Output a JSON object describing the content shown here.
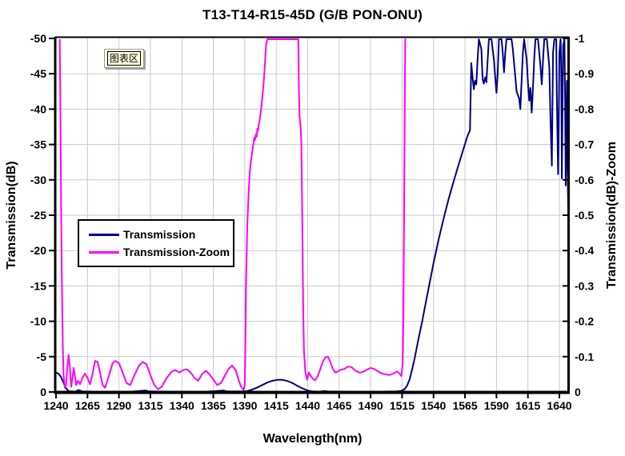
{
  "chart_data": {
    "type": "line",
    "title": "T13-T14-R15-45D (G/B PON-ONU)",
    "xlabel": "Wavelength(nm)",
    "ylabel_left": "Transmission(dB)",
    "ylabel_right": "Transmission(dB)-Zoom",
    "grid": true,
    "xlim": [
      1240,
      1647
    ],
    "ylim_left": [
      -50,
      0
    ],
    "ylim_right": [
      -1,
      0
    ],
    "ticks": {
      "x": [
        "1240",
        "1265",
        "1290",
        "1315",
        "1340",
        "1365",
        "1390",
        "1415",
        "1440",
        "1465",
        "1490",
        "1515",
        "1540",
        "1565",
        "1590",
        "1615",
        "1640"
      ],
      "y_left": [
        "-50",
        "-45",
        "-40",
        "-35",
        "-30",
        "-25",
        "-20",
        "-15",
        "-10",
        "-5",
        "0"
      ],
      "y_right": [
        "-1",
        "-0.9",
        "-0.8",
        "-0.7",
        "-0.6",
        "-0.5",
        "-0.4",
        "-0.3",
        "-0.2",
        "-0.1",
        "0"
      ]
    },
    "legend": {
      "position": "inside-left",
      "entries": [
        {
          "label": "Transmission",
          "color": "#000080"
        },
        {
          "label": "Transmission-Zoom",
          "color": "#FF00FF"
        }
      ]
    },
    "annotations": [
      {
        "label": "图表区",
        "meaning": "chart-area tooltip"
      }
    ],
    "colors": {
      "series_transmission": "#000080",
      "series_transmission_zoom": "#FF00FF",
      "grid": "#c9c9c9",
      "axis": "#000000",
      "background": "#ffffff",
      "tooltip_bg": "#ffffe1"
    },
    "series": [
      {
        "name": "Transmission",
        "axis": "left",
        "color": "#000080",
        "points": [
          [
            1240,
            -2.75
          ],
          [
            1242,
            -2.6
          ],
          [
            1244,
            -2.1
          ],
          [
            1246,
            -1.3
          ],
          [
            1248,
            -0.5
          ],
          [
            1250,
            -0.12
          ],
          [
            1255,
            -0.06
          ],
          [
            1258,
            -0.28
          ],
          [
            1261,
            -0.08
          ],
          [
            1270,
            -0.06
          ],
          [
            1285,
            -0.06
          ],
          [
            1300,
            -0.06
          ],
          [
            1311,
            -0.22
          ],
          [
            1314,
            -0.08
          ],
          [
            1330,
            -0.06
          ],
          [
            1345,
            -0.06
          ],
          [
            1360,
            -0.06
          ],
          [
            1373,
            -0.22
          ],
          [
            1376,
            -0.08
          ],
          [
            1388,
            -0.08
          ],
          [
            1392,
            -0.15
          ],
          [
            1396,
            -0.35
          ],
          [
            1400,
            -0.65
          ],
          [
            1404,
            -1.0
          ],
          [
            1408,
            -1.35
          ],
          [
            1412,
            -1.6
          ],
          [
            1416,
            -1.72
          ],
          [
            1420,
            -1.72
          ],
          [
            1424,
            -1.55
          ],
          [
            1428,
            -1.25
          ],
          [
            1432,
            -0.85
          ],
          [
            1436,
            -0.5
          ],
          [
            1440,
            -0.22
          ],
          [
            1444,
            -0.08
          ],
          [
            1450,
            -0.06
          ],
          [
            1453,
            -0.15
          ],
          [
            1456,
            -0.08
          ],
          [
            1470,
            -0.06
          ],
          [
            1485,
            -0.06
          ],
          [
            1500,
            -0.06
          ],
          [
            1510,
            -0.08
          ],
          [
            1514,
            -0.15
          ],
          [
            1517,
            -0.4
          ],
          [
            1519,
            -0.9
          ],
          [
            1521,
            -1.8
          ],
          [
            1523,
            -3.2
          ],
          [
            1525,
            -4.8
          ],
          [
            1528,
            -7.5
          ],
          [
            1531,
            -10
          ],
          [
            1534,
            -12.8
          ],
          [
            1537,
            -15.5
          ],
          [
            1540,
            -18.2
          ],
          [
            1544,
            -21.5
          ],
          [
            1548,
            -24.5
          ],
          [
            1552,
            -27.3
          ],
          [
            1556,
            -29.8
          ],
          [
            1560,
            -32.2
          ],
          [
            1564,
            -34.5
          ],
          [
            1567,
            -36.2
          ],
          [
            1569,
            -37
          ],
          [
            1570,
            -46.5
          ],
          [
            1571,
            -44.5
          ],
          [
            1572,
            -42.8
          ],
          [
            1573,
            -44
          ],
          [
            1574,
            -43.5
          ],
          [
            1575,
            -47
          ],
          [
            1576,
            -50.5
          ],
          [
            1578,
            -48.5
          ],
          [
            1579,
            -44.2
          ],
          [
            1580,
            -43.6
          ],
          [
            1581,
            -44.5
          ],
          [
            1582,
            -43.8
          ],
          [
            1583,
            -47
          ],
          [
            1584,
            -50.5
          ],
          [
            1586,
            -51
          ],
          [
            1588,
            -47
          ],
          [
            1589,
            -44.5
          ],
          [
            1590,
            -42.3
          ],
          [
            1591,
            -45
          ],
          [
            1592,
            -50.5
          ],
          [
            1594,
            -51
          ],
          [
            1595,
            -48
          ],
          [
            1596,
            -45.2
          ],
          [
            1597,
            -48
          ],
          [
            1598,
            -50.5
          ],
          [
            1600,
            -51
          ],
          [
            1602,
            -50.5
          ],
          [
            1603,
            -48.5
          ],
          [
            1605,
            -44.5
          ],
          [
            1606,
            -42.5
          ],
          [
            1608,
            -41.5
          ],
          [
            1609,
            -40
          ],
          [
            1610,
            -44
          ],
          [
            1611,
            -48
          ],
          [
            1612,
            -51
          ],
          [
            1614,
            -47
          ],
          [
            1615,
            -43.8
          ],
          [
            1616,
            -41.2
          ],
          [
            1617,
            -43
          ],
          [
            1618,
            -39.5
          ],
          [
            1619,
            -43
          ],
          [
            1620,
            -47
          ],
          [
            1621,
            -51
          ],
          [
            1623,
            -51
          ],
          [
            1625,
            -46
          ],
          [
            1626,
            -43.5
          ],
          [
            1627,
            -47
          ],
          [
            1628,
            -51
          ],
          [
            1630,
            -51
          ],
          [
            1632,
            -46
          ],
          [
            1633,
            -38
          ],
          [
            1634,
            -32
          ],
          [
            1634.5,
            -40
          ],
          [
            1635,
            -48
          ],
          [
            1636,
            -51
          ],
          [
            1637.5,
            -51
          ],
          [
            1638,
            -42
          ],
          [
            1639,
            -30.8
          ],
          [
            1639.5,
            -38
          ],
          [
            1640,
            -48
          ],
          [
            1641,
            -51
          ],
          [
            1641.5,
            -45
          ],
          [
            1642,
            -30.2
          ],
          [
            1642.5,
            -40
          ],
          [
            1643,
            -49
          ],
          [
            1644,
            -51
          ],
          [
            1644.5,
            -42
          ],
          [
            1645,
            -29.2
          ],
          [
            1645.5,
            -36
          ],
          [
            1646,
            -44
          ],
          [
            1646.5,
            -32
          ],
          [
            1647,
            -26
          ]
        ]
      },
      {
        "name": "Transmission-Zoom",
        "axis": "right",
        "color": "#FF00FF",
        "points": [
          [
            1243,
            -1.05
          ],
          [
            1243.5,
            -0.8
          ],
          [
            1244,
            -0.55
          ],
          [
            1244.5,
            -0.35
          ],
          [
            1245,
            -0.22
          ],
          [
            1245.5,
            -0.12
          ],
          [
            1246,
            -0.05
          ],
          [
            1247,
            -0.012
          ],
          [
            1248,
            -0.02
          ],
          [
            1249,
            -0.07
          ],
          [
            1250,
            -0.105
          ],
          [
            1251,
            -0.07
          ],
          [
            1252,
            -0.015
          ],
          [
            1253,
            -0.035
          ],
          [
            1254,
            -0.068
          ],
          [
            1255,
            -0.045
          ],
          [
            1256,
            -0.02
          ],
          [
            1257.5,
            -0.032
          ],
          [
            1259,
            -0.022
          ],
          [
            1261,
            -0.04
          ],
          [
            1263,
            -0.052
          ],
          [
            1265,
            -0.04
          ],
          [
            1267,
            -0.022
          ],
          [
            1269,
            -0.05
          ],
          [
            1271,
            -0.088
          ],
          [
            1273,
            -0.085
          ],
          [
            1275,
            -0.055
          ],
          [
            1277,
            -0.02
          ],
          [
            1279,
            -0.012
          ],
          [
            1282,
            -0.045
          ],
          [
            1285,
            -0.082
          ],
          [
            1287,
            -0.088
          ],
          [
            1290,
            -0.082
          ],
          [
            1293,
            -0.055
          ],
          [
            1296,
            -0.025
          ],
          [
            1299,
            -0.02
          ],
          [
            1302,
            -0.045
          ],
          [
            1306,
            -0.075
          ],
          [
            1309,
            -0.085
          ],
          [
            1312,
            -0.078
          ],
          [
            1315,
            -0.048
          ],
          [
            1318,
            -0.02
          ],
          [
            1321,
            -0.008
          ],
          [
            1324,
            -0.015
          ],
          [
            1328,
            -0.04
          ],
          [
            1332,
            -0.058
          ],
          [
            1335,
            -0.062
          ],
          [
            1338,
            -0.055
          ],
          [
            1341,
            -0.062
          ],
          [
            1344,
            -0.064
          ],
          [
            1347,
            -0.055
          ],
          [
            1350,
            -0.04
          ],
          [
            1353,
            -0.032
          ],
          [
            1356,
            -0.05
          ],
          [
            1359,
            -0.06
          ],
          [
            1362,
            -0.05
          ],
          [
            1365,
            -0.035
          ],
          [
            1368,
            -0.02
          ],
          [
            1371,
            -0.025
          ],
          [
            1374,
            -0.045
          ],
          [
            1377,
            -0.065
          ],
          [
            1380,
            -0.075
          ],
          [
            1383,
            -0.06
          ],
          [
            1385,
            -0.035
          ],
          [
            1387,
            -0.015
          ],
          [
            1389,
            -0.006
          ],
          [
            1390,
            -0.02
          ],
          [
            1390.5,
            -0.15
          ],
          [
            1391,
            -0.3
          ],
          [
            1392,
            -0.47
          ],
          [
            1393,
            -0.56
          ],
          [
            1394,
            -0.625
          ],
          [
            1395,
            -0.655
          ],
          [
            1396,
            -0.68
          ],
          [
            1397,
            -0.705
          ],
          [
            1397.5,
            -0.72
          ],
          [
            1398,
            -0.712
          ],
          [
            1399,
            -0.73
          ],
          [
            1399.5,
            -0.722
          ],
          [
            1400,
            -0.745
          ],
          [
            1400.5,
            -0.738
          ],
          [
            1401,
            -0.755
          ],
          [
            1402,
            -0.772
          ],
          [
            1403,
            -0.8
          ],
          [
            1404,
            -0.835
          ],
          [
            1405,
            -0.875
          ],
          [
            1406,
            -0.925
          ],
          [
            1407,
            -0.985
          ],
          [
            1408,
            -1.06
          ],
          [
            1409,
            -1.2
          ],
          [
            1431,
            -1.2
          ],
          [
            1432.5,
            -1.0
          ],
          [
            1433,
            -0.86
          ],
          [
            1433.5,
            -0.78
          ],
          [
            1434,
            -0.76
          ],
          [
            1434.5,
            -0.745
          ],
          [
            1435,
            -0.7
          ],
          [
            1435.5,
            -0.55
          ],
          [
            1436,
            -0.38
          ],
          [
            1436.5,
            -0.22
          ],
          [
            1437,
            -0.12
          ],
          [
            1438,
            -0.06
          ],
          [
            1439.5,
            -0.035
          ],
          [
            1441,
            -0.055
          ],
          [
            1442.5,
            -0.045
          ],
          [
            1444,
            -0.038
          ],
          [
            1446,
            -0.033
          ],
          [
            1448,
            -0.045
          ],
          [
            1450,
            -0.065
          ],
          [
            1452,
            -0.085
          ],
          [
            1454,
            -0.098
          ],
          [
            1456,
            -0.1
          ],
          [
            1458,
            -0.085
          ],
          [
            1460,
            -0.065
          ],
          [
            1462,
            -0.055
          ],
          [
            1464,
            -0.058
          ],
          [
            1466,
            -0.063
          ],
          [
            1469,
            -0.065
          ],
          [
            1472,
            -0.072
          ],
          [
            1475,
            -0.07
          ],
          [
            1478,
            -0.06
          ],
          [
            1481,
            -0.055
          ],
          [
            1484,
            -0.057
          ],
          [
            1487,
            -0.063
          ],
          [
            1490,
            -0.068
          ],
          [
            1493,
            -0.065
          ],
          [
            1496,
            -0.058
          ],
          [
            1499,
            -0.052
          ],
          [
            1502,
            -0.05
          ],
          [
            1505,
            -0.048
          ],
          [
            1508,
            -0.052
          ],
          [
            1511,
            -0.058
          ],
          [
            1513,
            -0.052
          ],
          [
            1514.5,
            -0.045
          ],
          [
            1515.5,
            -0.08
          ],
          [
            1516,
            -0.2
          ],
          [
            1516.5,
            -0.45
          ],
          [
            1517,
            -0.75
          ],
          [
            1517.5,
            -1.0
          ],
          [
            1518,
            -1.2
          ]
        ]
      }
    ]
  }
}
